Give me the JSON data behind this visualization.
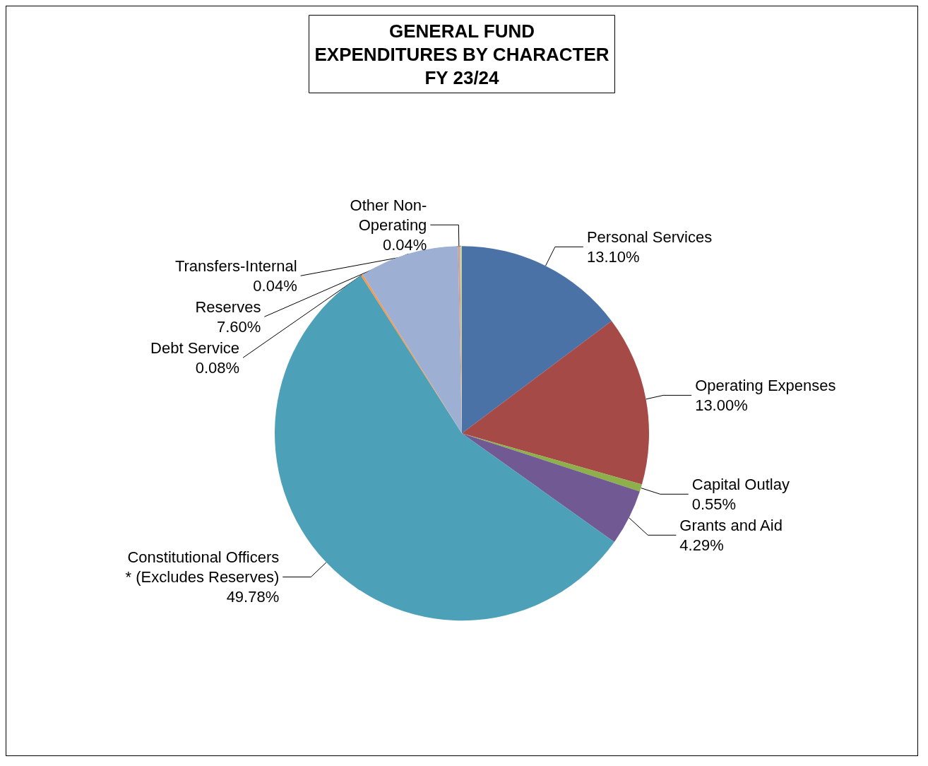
{
  "chart_data": {
    "type": "pie",
    "title": "GENERAL FUND\nEXPENDITURES BY CHARACTER\nFY 23/24",
    "categories": [
      "Personal Services",
      "Operating Expenses",
      "Capital Outlay",
      "Grants and Aid",
      "Constitutional Officers\n* (Excludes Reserves)",
      "Debt Service",
      "Reserves",
      "Other Non-\nOperating",
      "Transfers-Internal"
    ],
    "values": [
      13.1,
      13.0,
      0.55,
      4.29,
      49.78,
      0.08,
      7.6,
      0.04,
      0.04
    ],
    "value_labels": [
      "13.10%",
      "13.00%",
      "0.55%",
      "4.29%",
      "49.78%",
      "0.08%",
      "7.60%",
      "0.04%",
      "0.04%"
    ],
    "colors": [
      "#4a72a6",
      "#a64a47",
      "#8db04a",
      "#715a94",
      "#4ca0b7",
      "#f79646",
      "#9db0d4",
      "#d49896",
      "#bfd19c"
    ],
    "legend": false
  }
}
